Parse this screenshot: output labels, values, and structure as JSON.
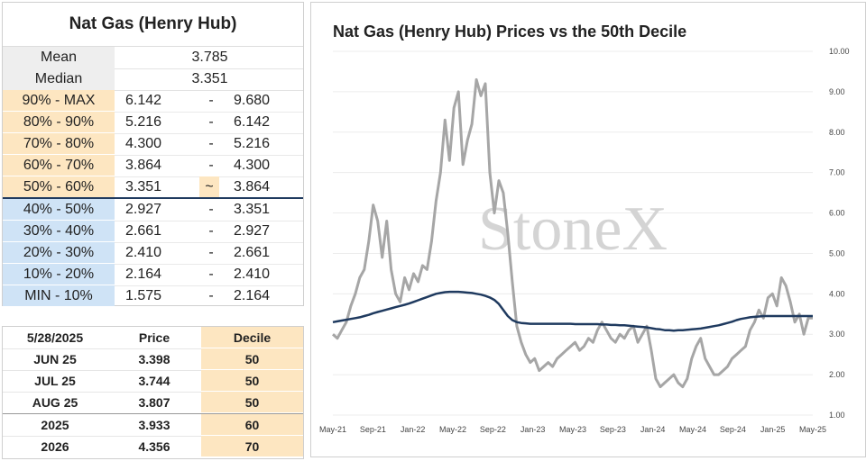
{
  "table": {
    "title": "Nat Gas (Henry Hub)",
    "mean_label": "Mean",
    "mean_value": "3.785",
    "median_label": "Median",
    "median_value": "3.351",
    "deciles": [
      {
        "label": "90% - MAX",
        "low": "6.142",
        "sep": "-",
        "high": "9.680"
      },
      {
        "label": "80% - 90%",
        "low": "5.216",
        "sep": "-",
        "high": "6.142"
      },
      {
        "label": "70% - 80%",
        "low": "4.300",
        "sep": "-",
        "high": "5.216"
      },
      {
        "label": "60% - 70%",
        "low": "3.864",
        "sep": "-",
        "high": "4.300"
      },
      {
        "label": "50% - 60%",
        "low": "3.351",
        "sep": "~",
        "high": "3.864"
      },
      {
        "label": "40% - 50%",
        "low": "2.927",
        "sep": "-",
        "high": "3.351"
      },
      {
        "label": "30% - 40%",
        "low": "2.661",
        "sep": "-",
        "high": "2.927"
      },
      {
        "label": "20% - 30%",
        "low": "2.410",
        "sep": "-",
        "high": "2.661"
      },
      {
        "label": "10% - 20%",
        "low": "2.164",
        "sep": "-",
        "high": "2.410"
      },
      {
        "label": "MIN - 10%",
        "low": "1.575",
        "sep": "-",
        "high": "2.164"
      }
    ]
  },
  "contracts": {
    "headers": [
      "5/28/2025",
      "Price",
      "Decile"
    ],
    "rows": [
      {
        "name": "JUN 25",
        "price": "3.398",
        "decile": "50"
      },
      {
        "name": "JUL 25",
        "price": "3.744",
        "decile": "50"
      },
      {
        "name": "AUG 25",
        "price": "3.807",
        "decile": "50"
      },
      {
        "name": "2025",
        "price": "3.933",
        "decile": "60"
      },
      {
        "name": "2026",
        "price": "4.356",
        "decile": "70"
      }
    ]
  },
  "colors": {
    "upper_decile": "#fde6c1",
    "lower_decile": "#cfe3f6",
    "price_line": "#a6a6a6",
    "decile_line": "#1f3a5f",
    "watermark": "#d4d4d4"
  },
  "chart_data": {
    "type": "line",
    "title": "Nat Gas (Henry Hub) Prices vs the 50th Decile",
    "watermark": "StoneX",
    "x_tick_labels": [
      "May-21",
      "Sep-21",
      "Jan-22",
      "May-22",
      "Sep-22",
      "Jan-23",
      "May-23",
      "Sep-23",
      "Jan-24",
      "May-24",
      "Sep-24",
      "Jan-25",
      "May-25"
    ],
    "y_tick_labels": [
      "1.00",
      "2.00",
      "3.00",
      "4.00",
      "5.00",
      "6.00",
      "7.00",
      "8.00",
      "9.00",
      "10.00"
    ],
    "ylim": [
      1,
      10
    ],
    "y_axis_side": "right",
    "grid": "horizontal",
    "xlabel": "",
    "ylabel": "",
    "series": [
      {
        "values": [
          3.0,
          2.9,
          3.1,
          3.3,
          3.7,
          4.0,
          4.4,
          4.6,
          5.3,
          6.2,
          5.8,
          4.9,
          5.8,
          4.6,
          4.0,
          3.8,
          4.4,
          4.1,
          4.5,
          4.3,
          4.7,
          4.6,
          5.3,
          6.3,
          7.0,
          8.3,
          7.3,
          8.6,
          9.0,
          7.2,
          7.8,
          8.2,
          9.3,
          8.9,
          9.2,
          7.0,
          6.0,
          6.8,
          6.5,
          5.5,
          4.3,
          3.2,
          2.8,
          2.5,
          2.3,
          2.4,
          2.1,
          2.2,
          2.3,
          2.2,
          2.4,
          2.5,
          2.6,
          2.7,
          2.8,
          2.6,
          2.7,
          2.9,
          2.8,
          3.1,
          3.3,
          3.1,
          2.9,
          2.8,
          3.0,
          2.9,
          3.1,
          3.2,
          2.8,
          3.0,
          3.2,
          2.6,
          1.9,
          1.7,
          1.8,
          1.9,
          2.0,
          1.8,
          1.7,
          1.9,
          2.4,
          2.7,
          2.9,
          2.4,
          2.2,
          2.0,
          2.0,
          2.1,
          2.2,
          2.4,
          2.5,
          2.6,
          2.7,
          3.1,
          3.3,
          3.6,
          3.4,
          3.9,
          4.0,
          3.7,
          4.4,
          4.2,
          3.8,
          3.3,
          3.5,
          3.0,
          3.4,
          3.4
        ]
      },
      {
        "values": [
          3.3,
          3.32,
          3.34,
          3.36,
          3.38,
          3.4,
          3.42,
          3.45,
          3.48,
          3.52,
          3.55,
          3.58,
          3.61,
          3.64,
          3.67,
          3.7,
          3.73,
          3.76,
          3.8,
          3.84,
          3.88,
          3.92,
          3.96,
          4.0,
          4.02,
          4.04,
          4.05,
          4.05,
          4.05,
          4.04,
          4.03,
          4.02,
          4.0,
          3.98,
          3.95,
          3.91,
          3.85,
          3.75,
          3.6,
          3.45,
          3.35,
          3.3,
          3.28,
          3.27,
          3.26,
          3.26,
          3.26,
          3.26,
          3.26,
          3.26,
          3.26,
          3.26,
          3.26,
          3.26,
          3.25,
          3.25,
          3.25,
          3.25,
          3.25,
          3.25,
          3.24,
          3.24,
          3.23,
          3.23,
          3.22,
          3.22,
          3.21,
          3.2,
          3.19,
          3.18,
          3.17,
          3.15,
          3.13,
          3.12,
          3.1,
          3.1,
          3.09,
          3.1,
          3.1,
          3.11,
          3.12,
          3.13,
          3.14,
          3.16,
          3.18,
          3.2,
          3.22,
          3.25,
          3.28,
          3.31,
          3.35,
          3.38,
          3.4,
          3.42,
          3.43,
          3.44,
          3.45,
          3.45,
          3.45,
          3.45,
          3.45,
          3.45,
          3.45,
          3.45,
          3.45,
          3.45,
          3.45,
          3.45
        ]
      }
    ]
  }
}
